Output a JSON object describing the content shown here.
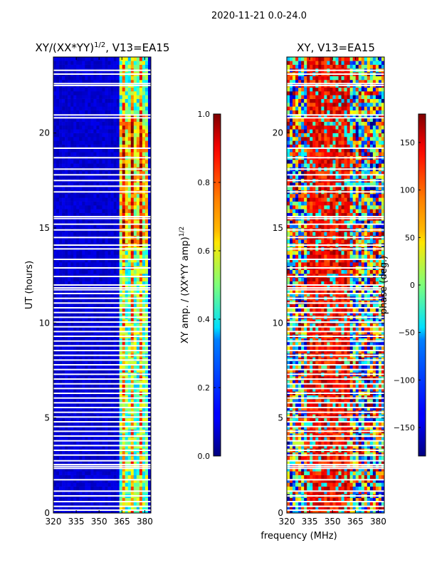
{
  "suptitle": "2020-11-21 0.0-24.0",
  "xlabel_shared": "frequency (MHz)",
  "chart_data": [
    {
      "type": "heatmap",
      "title": "XY/(XX*YY)",
      "title_sup": "1/2",
      "title_suffix": ", V13=EA15",
      "xlabel": "",
      "ylabel": "UT (hours)",
      "xlim": [
        320,
        384
      ],
      "ylim": [
        0,
        24
      ],
      "xticks": [
        320,
        335,
        350,
        365,
        380
      ],
      "yticks": [
        0,
        5,
        10,
        15,
        20
      ],
      "colorbar": {
        "label": "XY amp. / (XX*YY amp)",
        "label_sup": "1/2",
        "range": [
          0.0,
          1.0
        ],
        "ticks": [
          "0.0",
          "0.2",
          "0.4",
          "0.6",
          "0.8",
          "1.0"
        ],
        "colormap": "jet"
      },
      "active_band_mhz": [
        364,
        382
      ],
      "gaps_hours": [
        0.15,
        0.35,
        0.6,
        0.9,
        1.15,
        1.75,
        2.35,
        2.45,
        2.55,
        2.75,
        3.05,
        3.3,
        3.55,
        3.8,
        4.05,
        4.3,
        4.55,
        4.8,
        5.05,
        5.3,
        5.55,
        5.8,
        6.05,
        6.3,
        6.55,
        6.8,
        7.05,
        7.3,
        7.55,
        7.8,
        8.05,
        8.3,
        8.55,
        8.8,
        9.05,
        9.3,
        9.55,
        9.8,
        10.05,
        10.3,
        10.55,
        10.8,
        11.05,
        11.3,
        11.55,
        11.75,
        11.85,
        12.0,
        12.45,
        12.9,
        13.35,
        13.9,
        14.1,
        14.5,
        14.9,
        15.2,
        15.5,
        15.6,
        16.9,
        17.2,
        17.5,
        17.8,
        18.1,
        18.7,
        19.2,
        20.8,
        20.95,
        22.5,
        22.6,
        23.1,
        23.3
      ]
    },
    {
      "type": "heatmap",
      "title": "XY, V13=EA15",
      "xlabel": "frequency (MHz)",
      "ylabel": "",
      "xlim": [
        320,
        384
      ],
      "ylim": [
        0,
        24
      ],
      "xticks": [
        320,
        335,
        350,
        365,
        380
      ],
      "yticks": [
        0,
        5,
        10,
        15,
        20
      ],
      "colorbar": {
        "label": "phase (deg.)",
        "range": [
          -180,
          180
        ],
        "ticks": [
          "−150",
          "−100",
          "−50",
          "0",
          "50",
          "100",
          "150"
        ],
        "tick_values": [
          -150,
          -100,
          -50,
          0,
          50,
          100,
          150
        ],
        "colormap": "jet"
      },
      "gaps_hours": [
        0.15,
        0.35,
        0.6,
        0.9,
        1.15,
        1.75,
        2.35,
        2.45,
        2.55,
        2.75,
        3.05,
        3.3,
        3.55,
        3.8,
        4.05,
        4.3,
        4.55,
        4.8,
        5.05,
        5.3,
        5.55,
        5.8,
        6.05,
        6.3,
        6.55,
        6.8,
        7.05,
        7.3,
        7.55,
        7.8,
        8.05,
        8.3,
        8.55,
        8.8,
        9.05,
        9.3,
        9.55,
        9.8,
        10.05,
        10.3,
        10.55,
        10.8,
        11.05,
        11.3,
        11.55,
        11.75,
        11.85,
        12.0,
        12.45,
        12.9,
        13.35,
        13.9,
        14.1,
        14.5,
        14.9,
        15.2,
        15.5,
        15.6,
        16.9,
        17.2,
        17.5,
        17.8,
        18.1,
        18.7,
        19.2,
        20.8,
        20.95,
        22.5,
        22.6,
        23.1,
        23.3
      ]
    }
  ]
}
